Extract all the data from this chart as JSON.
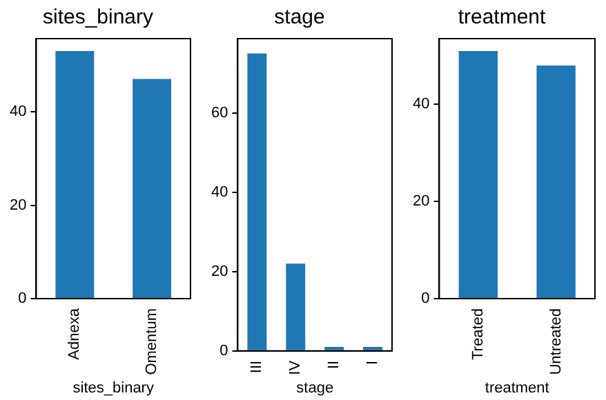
{
  "chart_data": [
    {
      "type": "bar",
      "title": "sites_binary",
      "xlabel": "sites_binary",
      "categories": [
        "Adnexa",
        "Omentum"
      ],
      "values": [
        53,
        47
      ],
      "color": "#1f77b4",
      "ylim": [
        0,
        55.65
      ],
      "yticks": [
        0,
        20,
        40
      ],
      "grid": false,
      "legend": false
    },
    {
      "type": "bar",
      "title": "stage",
      "xlabel": "stage",
      "categories": [
        "III",
        "IV",
        "II",
        "I"
      ],
      "values": [
        75,
        22,
        1,
        1
      ],
      "color": "#1f77b4",
      "ylim": [
        0,
        78.75
      ],
      "yticks": [
        0,
        20,
        40,
        60
      ],
      "grid": false,
      "legend": false
    },
    {
      "type": "bar",
      "title": "treatment",
      "xlabel": "treatment",
      "categories": [
        "Treated",
        "Untreated"
      ],
      "values": [
        51,
        48
      ],
      "color": "#1f77b4",
      "ylim": [
        0,
        53.55
      ],
      "yticks": [
        0,
        20,
        40
      ],
      "grid": false,
      "legend": false
    }
  ]
}
